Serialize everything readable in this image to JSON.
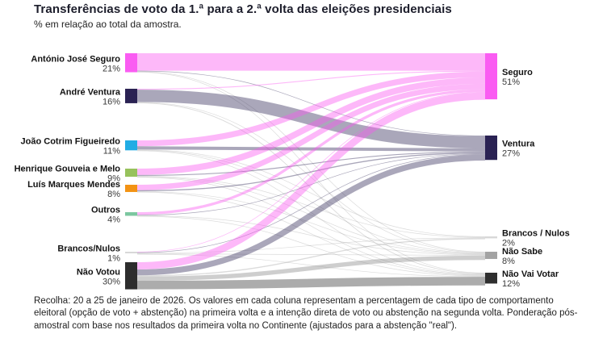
{
  "header": {
    "title": "Transferências de voto da 1.ª para a 2.ª volta das eleições presidenciais",
    "subtitle": "% em relação ao total da amostra."
  },
  "footer": {
    "text": "Recolha: 20 a 25 de janeiro de 2026. Os valores em cada coluna representam a percentagem de cada tipo de comportamento eleitoral (opção de voto + abstenção) na primeira volta e a intenção direta de voto ou abstenção na segunda volta. Ponderação pós-amostral com base nos resultados da primeira volta no Continente (ajustados para a abstenção \"real\")."
  },
  "chart_data": {
    "type": "sankey",
    "title": "Transferências de voto da 1.ª para a 2.ª volta das eleições presidenciais",
    "subtitle": "% em relação ao total da amostra.",
    "unit": "%",
    "nodes_left": [
      {
        "id": "seguro1",
        "label": "António José Seguro",
        "value": 21,
        "value_label": "21%",
        "color": "#fa5cf2"
      },
      {
        "id": "ventura1",
        "label": "André Ventura",
        "value": 16,
        "value_label": "16%",
        "color": "#2a2253"
      },
      {
        "id": "jcf",
        "label": "João Cotrim Figueiredo",
        "value": 11,
        "value_label": "11%",
        "color": "#21ace4"
      },
      {
        "id": "hgm",
        "label": "Henrique Gouveia e Melo",
        "value": 9,
        "value_label": "9%",
        "color": "#97c25c"
      },
      {
        "id": "lmm",
        "label": "Luís Marques Mendes",
        "value": 8,
        "value_label": "8%",
        "color": "#f39314"
      },
      {
        "id": "outros",
        "label": "Outros",
        "value": 4,
        "value_label": "4%",
        "color": "#7cc7a0"
      },
      {
        "id": "bn1",
        "label": "Brancos/Nulos",
        "value": 1,
        "value_label": "1%",
        "color": "#d8d8d8"
      },
      {
        "id": "nv1",
        "label": "Não Votou",
        "value": 30,
        "value_label": "30%",
        "color": "#2d2d2d"
      }
    ],
    "nodes_right": [
      {
        "id": "seguro2",
        "label": "Seguro",
        "value": 51,
        "value_label": "51%",
        "color": "#fa5cf2"
      },
      {
        "id": "ventura2",
        "label": "Ventura",
        "value": 27,
        "value_label": "27%",
        "color": "#2a2253"
      },
      {
        "id": "bn2",
        "label": "Brancos / Nulos",
        "value": 2,
        "value_label": "2%",
        "color": "#d8d8d8"
      },
      {
        "id": "ns",
        "label": "Não Sabe",
        "value": 8,
        "value_label": "8%",
        "color": "#a3a3a3"
      },
      {
        "id": "nvv",
        "label": "Não Vai Votar",
        "value": 12,
        "value_label": "12%",
        "color": "#2f2f2f"
      }
    ],
    "links": [
      {
        "source": "seguro1",
        "target": "seguro2",
        "value": 19.3
      },
      {
        "source": "seguro1",
        "target": "ventura2",
        "value": 0.6
      },
      {
        "source": "seguro1",
        "target": "ns",
        "value": 0.6
      },
      {
        "source": "seguro1",
        "target": "nvv",
        "value": 0.5
      },
      {
        "source": "ventura1",
        "target": "seguro2",
        "value": 1.0
      },
      {
        "source": "ventura1",
        "target": "ventura2",
        "value": 13.6
      },
      {
        "source": "ventura1",
        "target": "ns",
        "value": 0.6
      },
      {
        "source": "ventura1",
        "target": "nvv",
        "value": 0.8
      },
      {
        "source": "jcf",
        "target": "seguro2",
        "value": 6.5
      },
      {
        "source": "jcf",
        "target": "ventura2",
        "value": 3.5
      },
      {
        "source": "jcf",
        "target": "bn2",
        "value": 0.2
      },
      {
        "source": "jcf",
        "target": "ns",
        "value": 0.5
      },
      {
        "source": "jcf",
        "target": "nvv",
        "value": 0.3
      },
      {
        "source": "hgm",
        "target": "seguro2",
        "value": 7.0
      },
      {
        "source": "hgm",
        "target": "ventura2",
        "value": 1.0
      },
      {
        "source": "hgm",
        "target": "bn2",
        "value": 0.1
      },
      {
        "source": "hgm",
        "target": "ns",
        "value": 0.6
      },
      {
        "source": "hgm",
        "target": "nvv",
        "value": 0.3
      },
      {
        "source": "lmm",
        "target": "seguro2",
        "value": 6.0
      },
      {
        "source": "lmm",
        "target": "ventura2",
        "value": 1.2
      },
      {
        "source": "lmm",
        "target": "ns",
        "value": 0.5
      },
      {
        "source": "lmm",
        "target": "nvv",
        "value": 0.3
      },
      {
        "source": "outros",
        "target": "seguro2",
        "value": 3.0
      },
      {
        "source": "outros",
        "target": "ventura2",
        "value": 0.5
      },
      {
        "source": "outros",
        "target": "ns",
        "value": 0.3
      },
      {
        "source": "outros",
        "target": "nvv",
        "value": 0.2
      },
      {
        "source": "bn1",
        "target": "seguro2",
        "value": 0.2
      },
      {
        "source": "bn1",
        "target": "ventura2",
        "value": 0.1
      },
      {
        "source": "bn1",
        "target": "bn2",
        "value": 0.5
      },
      {
        "source": "bn1",
        "target": "ns",
        "value": 0.1
      },
      {
        "source": "bn1",
        "target": "nvv",
        "value": 0.1
      },
      {
        "source": "nv1",
        "target": "seguro2",
        "value": 8.0
      },
      {
        "source": "nv1",
        "target": "ventura2",
        "value": 6.5
      },
      {
        "source": "nv1",
        "target": "bn2",
        "value": 1.2
      },
      {
        "source": "nv1",
        "target": "ns",
        "value": 4.8
      },
      {
        "source": "nv1",
        "target": "nvv",
        "value": 9.5
      }
    ],
    "link_colors": {
      "to_seguro": "rgba(250,85,240,0.42)",
      "to_ventura": "rgba(42,34,83,0.40)",
      "default_gray": "rgba(125,125,125,0.28)",
      "nv_to_ns": "rgba(125,125,125,0.38)",
      "nv_to_nvv": "rgba(112,112,112,0.58)"
    }
  }
}
